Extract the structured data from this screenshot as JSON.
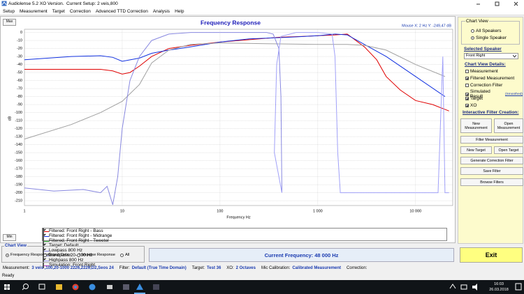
{
  "window": {
    "title": "Audiolense 5.2 XO Version.",
    "setup": "Current Setup: 2 veis,800"
  },
  "menu": [
    "Setup",
    "Measurement",
    "Target",
    "Correction",
    "Advanced TTD Correction",
    "Analysis",
    "Help"
  ],
  "chart_data": {
    "type": "line",
    "title": "Frequency Response",
    "mouse": "Mouse X: 2 Hz   Y: -249,47 dB",
    "max_button": "Max",
    "min_button": "Min",
    "xlabel": "Frequency Hz",
    "ylabel": "dB",
    "xscale": "log",
    "grid": true,
    "xlim": [
      1,
      24000
    ],
    "ylim": [
      -216,
      4
    ],
    "xticks": [
      1,
      10,
      100,
      {
        "value": 1000,
        "label": "1 000"
      },
      {
        "value": 10000,
        "label": "10 000"
      }
    ],
    "yticks": [
      0,
      -10,
      -20,
      -30,
      -40,
      -50,
      -60,
      -70,
      -80,
      -90,
      -100,
      -110,
      -120,
      -130,
      -140,
      -150,
      -160,
      -170,
      -180,
      -190,
      -200,
      -210
    ],
    "series": [
      {
        "name": "Filtered: Front Right - Bass",
        "color": "#e00000",
        "checked": true,
        "x": [
          1,
          2,
          4,
          6,
          8,
          10,
          12,
          15,
          20,
          30,
          50,
          100,
          200,
          400,
          700,
          1000,
          1500,
          2000,
          3000,
          4000,
          5000,
          7000,
          10000,
          15000,
          22000
        ],
        "values": [
          -46,
          -46,
          -46,
          -46,
          -48,
          -52,
          -50,
          -42,
          -30,
          -20,
          -16,
          -12,
          -9,
          -6,
          -5,
          -4,
          -3,
          -2,
          -18,
          -34,
          -55,
          -72,
          -85,
          -90,
          -98
        ]
      },
      {
        "name": "Filtered: Front Right - Midrange",
        "color": "#1030e0",
        "checked": true,
        "x": [
          1,
          3,
          6,
          8,
          10,
          15,
          20,
          30,
          50,
          100,
          200,
          500,
          1000,
          1500,
          2000,
          3000,
          5000,
          10000,
          20000
        ],
        "values": [
          -34,
          -30,
          -29,
          -31,
          -36,
          -32,
          -26,
          -22,
          -18,
          -12,
          -8,
          -6,
          -4,
          -2,
          -3,
          -15,
          -30,
          -55,
          -80
        ]
      },
      {
        "name": "Filtered: Front Right - Tweeter",
        "color": "#20a020",
        "checked": false,
        "x": [],
        "values": []
      },
      {
        "name": "Target: Default",
        "color": "#a0a0a0",
        "checked": true,
        "x": [
          1,
          3,
          6,
          10,
          15,
          20,
          30,
          50,
          100,
          300,
          1000,
          2000,
          3000,
          5000,
          10000,
          20000
        ],
        "values": [
          -133,
          -115,
          -100,
          -86,
          -65,
          -38,
          -22,
          -15,
          -13,
          -14,
          -15,
          -15,
          -16,
          -22,
          -40,
          -55
        ]
      },
      {
        "name": "Lowpass  800 Hz",
        "color": "#8888e0",
        "checked": true,
        "x": [
          1,
          2,
          4,
          6,
          7,
          8,
          9,
          10,
          12,
          15,
          20,
          30,
          50,
          100,
          200,
          300,
          350,
          400,
          420,
          430
        ],
        "values": [
          -194,
          -198,
          -196,
          -200,
          -192,
          -215,
          -180,
          -120,
          -60,
          -30,
          -10,
          -2,
          0,
          0,
          0,
          0,
          -2,
          -20,
          -80,
          -200
        ]
      },
      {
        "name": "Bandpass  20- 800 Hz",
        "color": "#9090d8",
        "checked": true,
        "x": [],
        "values": []
      },
      {
        "name": "Highpass  800 Hz",
        "color": "#a0a0f8",
        "checked": true,
        "x": [
          430,
          360,
          380,
          420,
          600,
          1000,
          1400,
          1500,
          1600,
          1700,
          3000,
          10000,
          17000,
          19000,
          20000,
          22000
        ],
        "values": [
          -200,
          -150,
          -40,
          -5,
          0,
          0,
          -2,
          -30,
          -150,
          -200,
          -200,
          -200,
          -200,
          -30,
          -200,
          -200
        ]
      },
      {
        "name": "Simulation: Front Right",
        "color": "#c040c0",
        "checked": false,
        "x": [],
        "values": []
      }
    ]
  },
  "chart_view": {
    "title": "Chart View",
    "options": [
      {
        "label": "Frequency Response",
        "selected": true
      },
      {
        "label": "Group Delay",
        "selected": false
      },
      {
        "label": "Impulse Response",
        "selected": false
      },
      {
        "label": "All",
        "selected": false
      }
    ]
  },
  "current_frequency": "Current Frequency: 48 000 Hz",
  "exit": "Exit",
  "status": [
    {
      "label": "Measurement:",
      "value": "3 veis ,100,20-1000 2226,2226,D2,Seos 24"
    },
    {
      "label": "Filter:",
      "value": "Default (True Time Domain)"
    },
    {
      "label": "Target:",
      "value": "Test 36"
    },
    {
      "label": "XO:",
      "value": "2 Octaves"
    },
    {
      "label": "Mic Calibration:",
      "value": "Calibrated Measurement"
    },
    {
      "label": "Correction:"
    }
  ],
  "ready": "Ready",
  "taskbar": {
    "time": "16:03",
    "date": "26.03.2018"
  },
  "panel": {
    "chart_view_title": "Chart View",
    "speakers": [
      {
        "label": "All Speakers",
        "selected": false
      },
      {
        "label": "Single Speaker",
        "selected": true
      }
    ],
    "selected_speaker_title": "Selected Speaker",
    "speaker": "Front Right",
    "details_title": "Chart View Details:",
    "details": [
      {
        "label": "Measurement",
        "checked": false
      },
      {
        "label": "Filtered Measurement",
        "checked": true
      },
      {
        "label": "Correction Filter",
        "checked": false
      },
      {
        "label": "Simulated Result",
        "checked": true,
        "extra": "(Smoothed)"
      },
      {
        "label": "Target",
        "checked": true
      },
      {
        "label": "XO",
        "checked": true
      }
    ],
    "filter_title": "Interactive Filter Creation:",
    "buttons": [
      "New Measurement",
      "Open Measurement",
      "Filter Measurement",
      "New Target",
      "Open Target",
      "Generate Correction Filter",
      "Save Filter",
      "Browse Filters"
    ]
  }
}
